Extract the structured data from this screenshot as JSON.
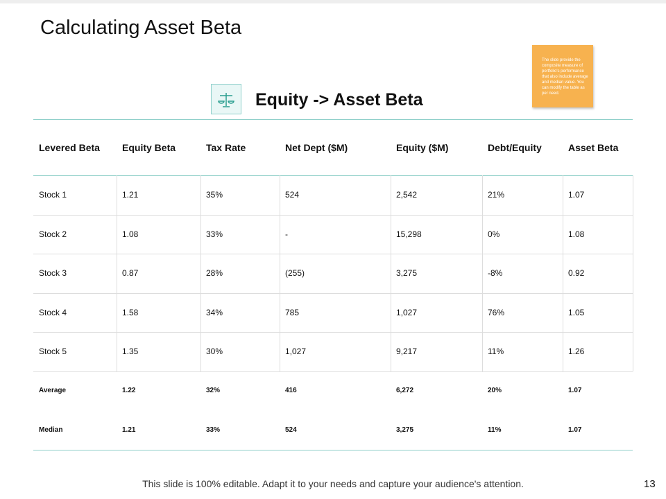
{
  "header": {
    "title": "Calculating Asset Beta",
    "subtitle": "Equity -> Asset Beta"
  },
  "note": "The slide provide the composite measure of portfolio's performance that also include average and median value. You can modify the table as per need.",
  "table": {
    "columns": [
      "Levered Beta",
      "Equity Beta",
      "Tax Rate",
      "Net Dept ($M)",
      "Equity ($M)",
      "Debt/Equity",
      "Asset Beta"
    ],
    "rows": [
      [
        "Stock 1",
        "1.21",
        "35%",
        "524",
        "2,542",
        "21%",
        "1.07"
      ],
      [
        "Stock 2",
        "1.08",
        "33%",
        "-",
        "15,298",
        "0%",
        "1.08"
      ],
      [
        "Stock 3",
        "0.87",
        "28%",
        "(255)",
        "3,275",
        "-8%",
        "0.92"
      ],
      [
        "Stock 4",
        "1.58",
        "34%",
        "785",
        "1,027",
        "76%",
        "1.05"
      ],
      [
        "Stock 5",
        "1.35",
        "30%",
        "1,027",
        "9,217",
        "11%",
        "1.26"
      ]
    ],
    "summary_rows": [
      [
        "Average",
        "1.22",
        "32%",
        "416",
        "6,272",
        "20%",
        "1.07"
      ],
      [
        "Median",
        "1.21",
        "33%",
        "524",
        "3,275",
        "11%",
        "1.07"
      ]
    ]
  },
  "footer": {
    "text": "This slide is 100% editable. Adapt it to your needs and capture your audience's attention.",
    "page": "13"
  }
}
